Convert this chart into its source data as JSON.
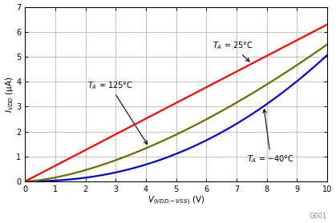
{
  "xlim": [
    0,
    10
  ],
  "ylim": [
    0,
    7
  ],
  "xticks": [
    0,
    1,
    2,
    3,
    4,
    5,
    6,
    7,
    8,
    9,
    10
  ],
  "yticks": [
    0,
    1,
    2,
    3,
    4,
    5,
    6,
    7
  ],
  "line_colors": {
    "25C": "#ff0000",
    "125C": "#6b6b00",
    "neg40C": "#0000cc"
  },
  "watermark": "G001",
  "background_color": "#ffffff",
  "grid_color": "#aaaaaa"
}
